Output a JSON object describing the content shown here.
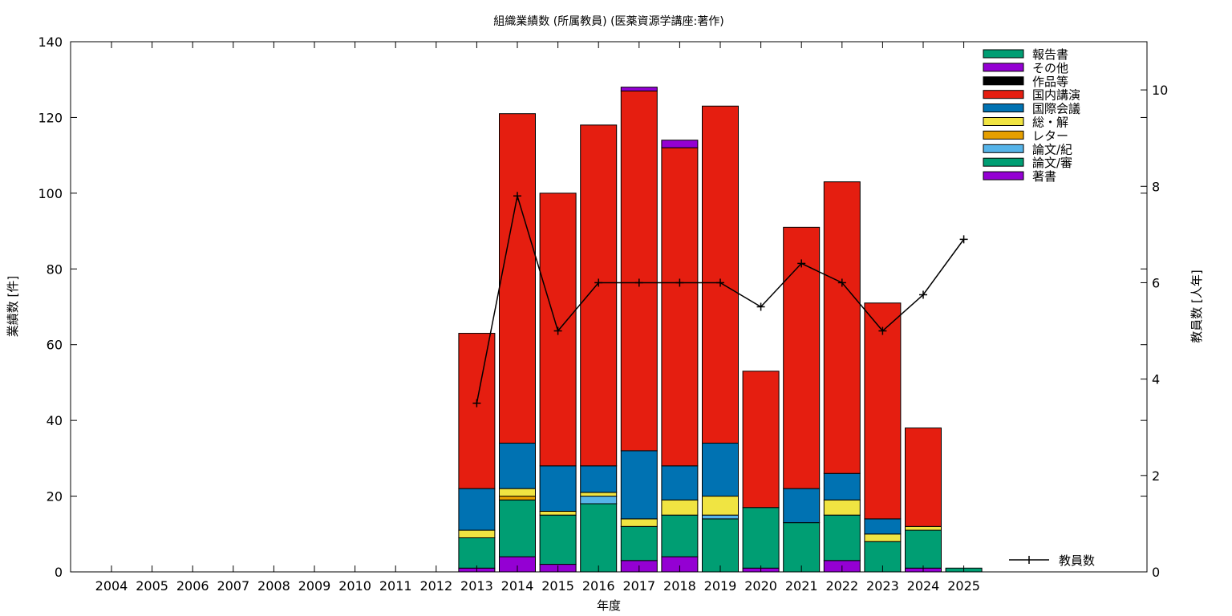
{
  "chart_data": {
    "type": "bar",
    "stacked": true,
    "title": "組織業績数 (所属教員) (医薬資源学講座:著作)",
    "xlabel": "年度",
    "ylabel": "業績数 [件]",
    "y2label": "教員数 [人年]",
    "ylim": [
      0,
      140
    ],
    "y2lim": [
      0,
      11
    ],
    "yticks": [
      "0",
      "20",
      "40",
      "60",
      "80",
      "100",
      "120",
      "140"
    ],
    "y2ticks": [
      "0",
      "2",
      "4",
      "6",
      "8",
      "10"
    ],
    "legend_position": "top-right",
    "categories": [
      "2004",
      "2005",
      "2006",
      "2007",
      "2008",
      "2009",
      "2010",
      "2011",
      "2012",
      "2013",
      "2014",
      "2015",
      "2016",
      "2017",
      "2018",
      "2019",
      "2020",
      "2021",
      "2022",
      "2023",
      "2024",
      "2025"
    ],
    "series": [
      {
        "name": "著書",
        "color": "#9400d3",
        "values": [
          0,
          0,
          0,
          0,
          0,
          0,
          0,
          0,
          0,
          1,
          4,
          2,
          0,
          3,
          4,
          0,
          1,
          0,
          3,
          0,
          1,
          0
        ]
      },
      {
        "name": "論文/審",
        "color": "#009e73",
        "values": [
          0,
          0,
          0,
          0,
          0,
          0,
          0,
          0,
          0,
          8,
          15,
          13,
          18,
          9,
          11,
          14,
          16,
          13,
          12,
          8,
          10,
          1
        ]
      },
      {
        "name": "論文/紀",
        "color": "#56b4e9",
        "values": [
          0,
          0,
          0,
          0,
          0,
          0,
          0,
          0,
          0,
          0,
          0,
          0,
          2,
          0,
          0,
          1,
          0,
          0,
          0,
          0,
          0,
          0
        ]
      },
      {
        "name": "レター",
        "color": "#e69f00",
        "values": [
          0,
          0,
          0,
          0,
          0,
          0,
          0,
          0,
          0,
          0,
          1,
          0,
          0,
          0,
          0,
          0,
          0,
          0,
          0,
          0,
          0,
          0
        ]
      },
      {
        "name": "総・解",
        "color": "#f0e442",
        "values": [
          0,
          0,
          0,
          0,
          0,
          0,
          0,
          0,
          0,
          2,
          2,
          1,
          1,
          2,
          4,
          5,
          0,
          0,
          4,
          2,
          1,
          0
        ]
      },
      {
        "name": "国際会議",
        "color": "#0072b2",
        "values": [
          0,
          0,
          0,
          0,
          0,
          0,
          0,
          0,
          0,
          11,
          12,
          12,
          7,
          18,
          9,
          14,
          0,
          9,
          7,
          4,
          0,
          0
        ]
      },
      {
        "name": "国内講演",
        "color": "#e51e10",
        "values": [
          0,
          0,
          0,
          0,
          0,
          0,
          0,
          0,
          0,
          41,
          87,
          72,
          90,
          95,
          84,
          89,
          36,
          69,
          77,
          57,
          26,
          0
        ]
      },
      {
        "name": "作品等",
        "color": "#000000",
        "values": [
          0,
          0,
          0,
          0,
          0,
          0,
          0,
          0,
          0,
          0,
          0,
          0,
          0,
          0,
          0,
          0,
          0,
          0,
          0,
          0,
          0,
          0
        ]
      },
      {
        "name": "その他",
        "color": "#9400d3",
        "values": [
          0,
          0,
          0,
          0,
          0,
          0,
          0,
          0,
          0,
          0,
          0,
          0,
          0,
          1,
          2,
          0,
          0,
          0,
          0,
          0,
          0,
          0
        ]
      },
      {
        "name": "報告書",
        "color": "#009e73",
        "values": [
          0,
          0,
          0,
          0,
          0,
          0,
          0,
          0,
          0,
          0,
          0,
          0,
          0,
          0,
          0,
          0,
          0,
          0,
          0,
          0,
          0,
          0
        ]
      }
    ],
    "line_series": {
      "name": "教員数",
      "axis": "y2",
      "color": "#000000",
      "x": [
        "2013",
        "2014",
        "2015",
        "2016",
        "2017",
        "2018",
        "2019",
        "2020",
        "2021",
        "2022",
        "2023",
        "2024",
        "2025"
      ],
      "values": [
        3.5,
        7.8,
        5.0,
        6.0,
        6.0,
        6.0,
        6.0,
        5.5,
        6.4,
        6.0,
        5.0,
        5.75,
        6.9
      ]
    }
  }
}
